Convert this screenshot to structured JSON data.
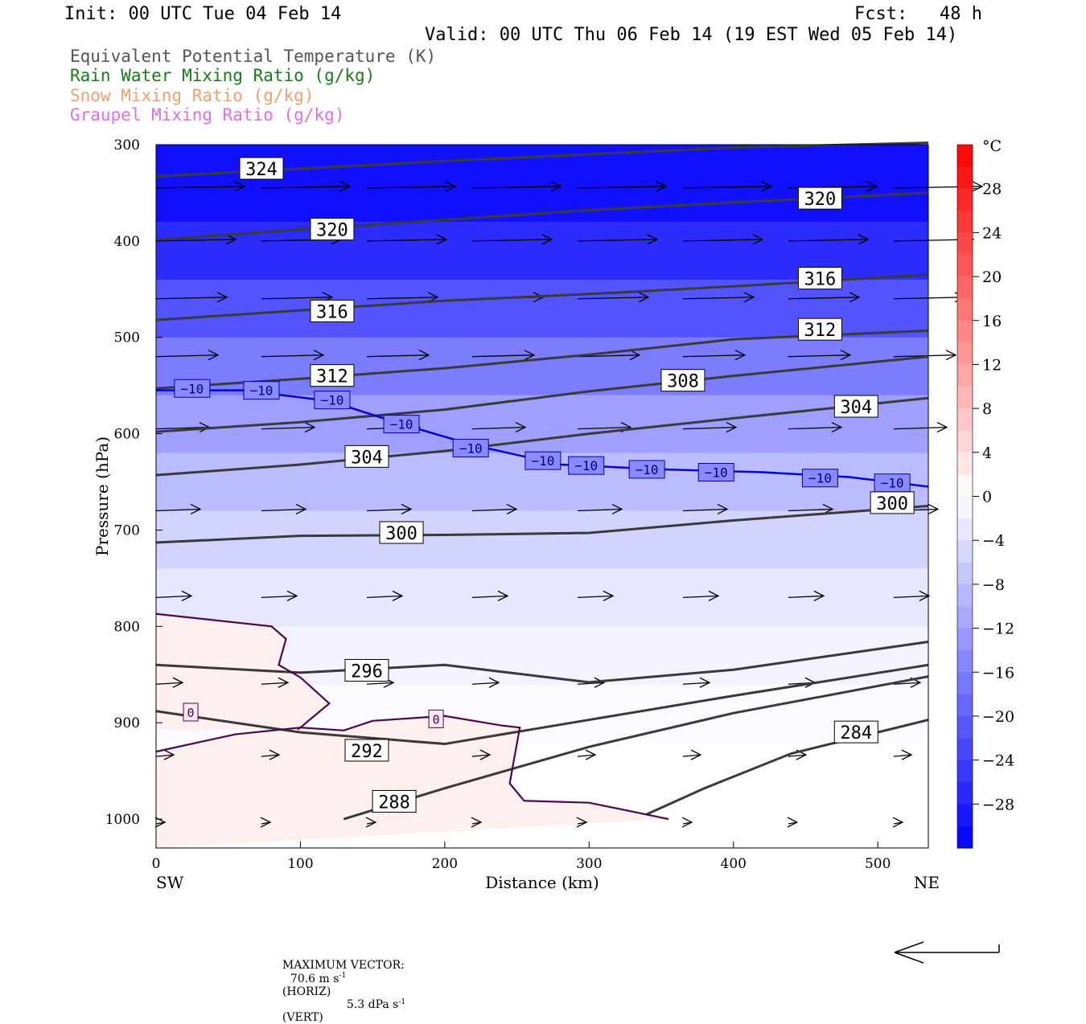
{
  "header": {
    "init": "Init: 00 UTC Tue 04 Feb 14",
    "fcst": "Fcst:   48 h",
    "valid": "Valid: 00 UTC Thu 06 Feb 14 (19 EST Wed 05 Feb 14)"
  },
  "legend": [
    {
      "label": "Equivalent Potential Temperature (K)",
      "color": "#555555"
    },
    {
      "label": "Rain Water Mixing Ratio (g/kg)",
      "color": "#1a7a1a"
    },
    {
      "label": "Snow Mixing Ratio (g/kg)",
      "color": "#f0a070"
    },
    {
      "label": "Graupel Mixing Ratio (g/kg)",
      "color": "#e070e0"
    }
  ],
  "footer": {
    "label": "MAXIMUM VECTOR:",
    "horiz_value": "70.6 m s",
    "horiz_exp": "-1",
    "horiz_unit": "(HORIZ)",
    "vert_value": "5.3 dPa s",
    "vert_exp": "-1",
    "vert_unit": "(VERT)"
  },
  "chart_data": {
    "type": "cross-section",
    "xlabel": "Distance (km)",
    "ylabel": "Pressure (hPa)",
    "xlim": [
      0,
      535
    ],
    "ylim": [
      1030,
      300
    ],
    "x_ticks": [
      0,
      100,
      200,
      300,
      400,
      500
    ],
    "y_ticks": [
      300,
      400,
      500,
      600,
      700,
      800,
      900,
      1000
    ],
    "x_end_labels": {
      "left": "SW",
      "right": "NE"
    },
    "colorbar": {
      "unit": "°C",
      "range": [
        -32,
        32
      ],
      "tick_labels": [
        "28",
        "24",
        "20",
        "16",
        "12",
        "8",
        "4",
        "0",
        "−4",
        "−8",
        "−12",
        "−16",
        "−20",
        "−24",
        "−28"
      ],
      "tick_values": [
        28,
        24,
        20,
        16,
        12,
        8,
        4,
        0,
        -4,
        -8,
        -12,
        -16,
        -20,
        -24,
        -28
      ]
    },
    "shading_colors": {
      "cold": "#0000ff",
      "zero": "#ffffff",
      "warm": "#ff0000"
    },
    "temperature_field": [
      {
        "p": 300,
        "t": -31
      },
      {
        "p": 380,
        "t": -29
      },
      {
        "p": 440,
        "t": -24
      },
      {
        "p": 500,
        "t": -19
      },
      {
        "p": 560,
        "t": -14
      },
      {
        "p": 620,
        "t": -10
      },
      {
        "p": 680,
        "t": -7
      },
      {
        "p": 740,
        "t": -4
      },
      {
        "p": 800,
        "t": -2
      },
      {
        "p": 860,
        "t": -1
      },
      {
        "p": 920,
        "t": 0
      },
      {
        "p": 1030,
        "t": 0
      }
    ],
    "theta_e_contours": [
      {
        "value": "324",
        "points": [
          [
            0,
            333
          ],
          [
            100,
            325
          ],
          [
            200,
            317
          ],
          [
            300,
            310
          ],
          [
            400,
            303
          ],
          [
            535,
            298
          ]
        ],
        "label_at": [
          73,
          325
        ]
      },
      {
        "value": "320",
        "points": [
          [
            0,
            399
          ],
          [
            100,
            388
          ],
          [
            200,
            378
          ],
          [
            300,
            368
          ],
          [
            400,
            360
          ],
          [
            535,
            350
          ]
        ],
        "label_at": [
          122,
          388
        ]
      },
      {
        "value": "320",
        "points": [],
        "label_at": [
          460,
          356
        ]
      },
      {
        "value": "316",
        "points": [
          [
            0,
            482
          ],
          [
            100,
            472
          ],
          [
            200,
            462
          ],
          [
            300,
            455
          ],
          [
            400,
            447
          ],
          [
            535,
            435
          ]
        ],
        "label_at": [
          122,
          473
        ]
      },
      {
        "value": "316",
        "points": [],
        "label_at": [
          460,
          439
        ]
      },
      {
        "value": "312",
        "points": [
          [
            0,
            553
          ],
          [
            100,
            543
          ],
          [
            200,
            532
          ],
          [
            300,
            518
          ],
          [
            400,
            502
          ],
          [
            535,
            493
          ]
        ],
        "label_at": [
          122,
          540
        ]
      },
      {
        "value": "312",
        "points": [],
        "label_at": [
          460,
          492
        ]
      },
      {
        "value": "308",
        "points": [
          [
            0,
            598
          ],
          [
            100,
            588
          ],
          [
            200,
            575
          ],
          [
            300,
            556
          ],
          [
            400,
            540
          ],
          [
            535,
            520
          ]
        ],
        "label_at": [
          365,
          545
        ]
      },
      {
        "value": "304",
        "points": [
          [
            0,
            643
          ],
          [
            100,
            632
          ],
          [
            200,
            618
          ],
          [
            300,
            600
          ],
          [
            400,
            584
          ],
          [
            535,
            563
          ]
        ],
        "label_at": [
          146,
          624
        ]
      },
      {
        "value": "304",
        "points": [],
        "label_at": [
          485,
          572
        ]
      },
      {
        "value": "300",
        "points": [
          [
            0,
            713
          ],
          [
            100,
            706
          ],
          [
            200,
            705
          ],
          [
            300,
            703
          ],
          [
            400,
            690
          ],
          [
            535,
            675
          ]
        ],
        "label_at": [
          170,
          703
        ]
      },
      {
        "value": "300",
        "points": [],
        "label_at": [
          510,
          672
        ]
      },
      {
        "value": "296",
        "points": [
          [
            0,
            840
          ],
          [
            100,
            848
          ],
          [
            200,
            840
          ],
          [
            300,
            858
          ],
          [
            400,
            845
          ],
          [
            535,
            816
          ]
        ],
        "label_at": [
          146,
          846
        ]
      },
      {
        "value": "292",
        "points": [
          [
            0,
            888
          ],
          [
            100,
            910
          ],
          [
            200,
            922
          ],
          [
            300,
            897
          ],
          [
            400,
            872
          ],
          [
            535,
            840
          ]
        ],
        "label_at": [
          146,
          929
        ]
      },
      {
        "value": "288",
        "points": [
          [
            130,
            1000
          ],
          [
            200,
            968
          ],
          [
            300,
            925
          ],
          [
            400,
            890
          ],
          [
            535,
            852
          ]
        ],
        "label_at": [
          165,
          982
        ]
      },
      {
        "value": "284",
        "points": [
          [
            340,
            995
          ],
          [
            380,
            968
          ],
          [
            440,
            932
          ],
          [
            535,
            897
          ]
        ],
        "label_at": [
          485,
          910
        ]
      }
    ],
    "isotherm_minus10": {
      "value": "−10",
      "points": [
        [
          0,
          555
        ],
        [
          60,
          555
        ],
        [
          120,
          566
        ],
        [
          170,
          590
        ],
        [
          220,
          612
        ],
        [
          280,
          632
        ],
        [
          350,
          637
        ],
        [
          420,
          640
        ],
        [
          480,
          645
        ],
        [
          535,
          655
        ]
      ],
      "labels_at": [
        [
          25,
          553
        ],
        [
          73,
          555
        ],
        [
          122,
          565
        ],
        [
          170,
          590
        ],
        [
          218,
          615
        ],
        [
          268,
          628
        ],
        [
          298,
          633
        ],
        [
          340,
          637
        ],
        [
          388,
          640
        ],
        [
          460,
          646
        ],
        [
          510,
          651
        ]
      ]
    },
    "isotherm_zero": {
      "value": "0",
      "regions": [
        [
          [
            0,
            787
          ],
          [
            80,
            800
          ],
          [
            90,
            813
          ],
          [
            85,
            840
          ],
          [
            100,
            853
          ],
          [
            120,
            880
          ],
          [
            100,
            905
          ],
          [
            98,
            907
          ],
          [
            0,
            907
          ]
        ],
        [
          [
            0,
            930
          ],
          [
            55,
            912
          ],
          [
            100,
            905
          ],
          [
            130,
            908
          ],
          [
            150,
            898
          ],
          [
            200,
            893
          ],
          [
            240,
            903
          ],
          [
            252,
            905
          ],
          [
            245,
            963
          ],
          [
            255,
            981
          ],
          [
            300,
            983
          ],
          [
            355,
            1000
          ],
          [
            0,
            1030
          ]
        ]
      ],
      "labels_at": [
        [
          24,
          889
        ],
        [
          194,
          896
        ]
      ]
    },
    "wind_rows_hpa": [
      345,
      400,
      460,
      520,
      595,
      680,
      770,
      860,
      935,
      1005
    ],
    "wind_cols_km": [
      0,
      73,
      146,
      219,
      292,
      365,
      438,
      511
    ]
  }
}
